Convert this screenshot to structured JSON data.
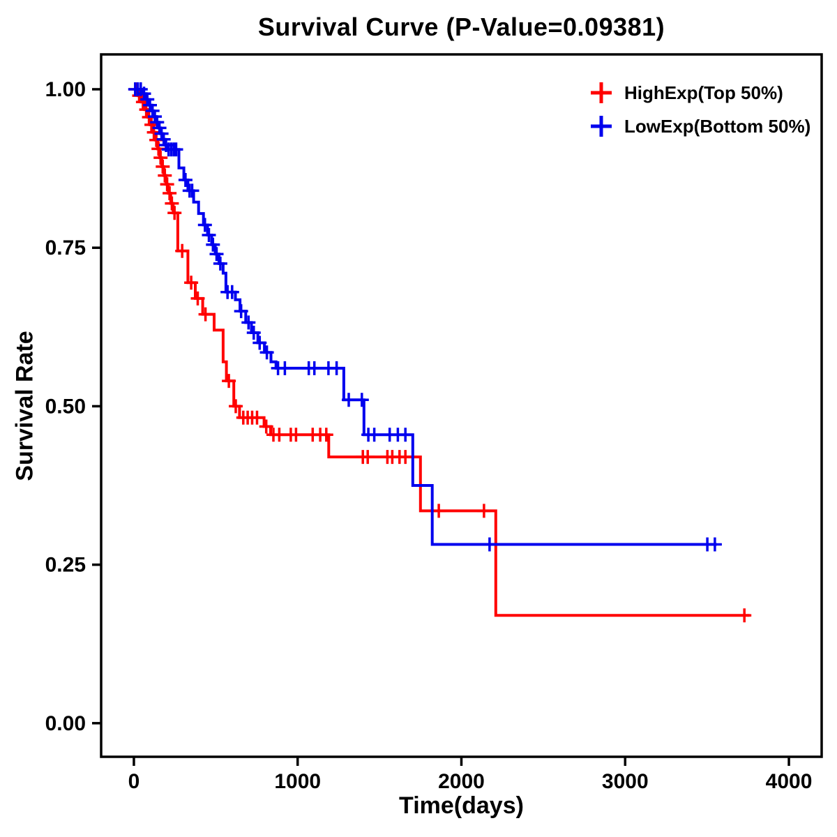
{
  "chart_data": {
    "type": "line",
    "subtype": "kaplan-meier-step-survival",
    "title": "Survival Curve (P-Value=0.09381)",
    "xlabel": "Time(days)",
    "ylabel": "Survival Rate",
    "p_value": "0.09381",
    "xlim": [
      -200,
      4200
    ],
    "ylim": [
      -0.053,
      1.055
    ],
    "x_ticks": [
      0,
      1000,
      2000,
      3000,
      4000
    ],
    "y_ticks": [
      0.0,
      0.25,
      0.5,
      0.75,
      1.0
    ],
    "y_tick_labels": [
      "0.00",
      "0.25",
      "0.50",
      "0.75",
      "1.00"
    ],
    "grid": false,
    "legend_position": "top-right",
    "axis_color": "#000000",
    "series": [
      {
        "name": "HighExp(Top 50%)",
        "color": "#FF0000",
        "end_time": 3760,
        "steps": [
          [
            0,
            1.0
          ],
          [
            25,
            0.99
          ],
          [
            45,
            0.98
          ],
          [
            65,
            0.968
          ],
          [
            85,
            0.956
          ],
          [
            100,
            0.944
          ],
          [
            115,
            0.932
          ],
          [
            130,
            0.92
          ],
          [
            145,
            0.906
          ],
          [
            158,
            0.892
          ],
          [
            170,
            0.878
          ],
          [
            183,
            0.864
          ],
          [
            196,
            0.85
          ],
          [
            210,
            0.836
          ],
          [
            225,
            0.82
          ],
          [
            240,
            0.805
          ],
          [
            268,
            0.745
          ],
          [
            330,
            0.695
          ],
          [
            375,
            0.67
          ],
          [
            420,
            0.645
          ],
          [
            490,
            0.62
          ],
          [
            545,
            0.57
          ],
          [
            565,
            0.54
          ],
          [
            610,
            0.5
          ],
          [
            645,
            0.482
          ],
          [
            795,
            0.468
          ],
          [
            835,
            0.455
          ],
          [
            1190,
            0.42
          ],
          [
            1750,
            0.335
          ],
          [
            2210,
            0.17
          ]
        ],
        "censors": [
          [
            12,
            1.0
          ],
          [
            32,
            0.99
          ],
          [
            55,
            0.98
          ],
          [
            75,
            0.968
          ],
          [
            92,
            0.956
          ],
          [
            107,
            0.944
          ],
          [
            122,
            0.932
          ],
          [
            137,
            0.92
          ],
          [
            150,
            0.906
          ],
          [
            163,
            0.892
          ],
          [
            176,
            0.878
          ],
          [
            189,
            0.864
          ],
          [
            203,
            0.85
          ],
          [
            218,
            0.836
          ],
          [
            232,
            0.82
          ],
          [
            248,
            0.805
          ],
          [
            295,
            0.745
          ],
          [
            350,
            0.695
          ],
          [
            390,
            0.67
          ],
          [
            437,
            0.645
          ],
          [
            580,
            0.54
          ],
          [
            622,
            0.5
          ],
          [
            668,
            0.482
          ],
          [
            695,
            0.482
          ],
          [
            722,
            0.482
          ],
          [
            752,
            0.482
          ],
          [
            808,
            0.468
          ],
          [
            852,
            0.455
          ],
          [
            888,
            0.455
          ],
          [
            958,
            0.455
          ],
          [
            990,
            0.455
          ],
          [
            1092,
            0.455
          ],
          [
            1138,
            0.455
          ],
          [
            1175,
            0.455
          ],
          [
            1398,
            0.42
          ],
          [
            1428,
            0.42
          ],
          [
            1548,
            0.42
          ],
          [
            1578,
            0.42
          ],
          [
            1622,
            0.42
          ],
          [
            1658,
            0.42
          ],
          [
            1862,
            0.335
          ],
          [
            2138,
            0.335
          ],
          [
            3728,
            0.17
          ]
        ]
      },
      {
        "name": "LowExp(Bottom 50%)",
        "color": "#0000EE",
        "end_time": 3560,
        "steps": [
          [
            0,
            1.0
          ],
          [
            55,
            0.993
          ],
          [
            75,
            0.984
          ],
          [
            92,
            0.975
          ],
          [
            108,
            0.966
          ],
          [
            122,
            0.957
          ],
          [
            136,
            0.948
          ],
          [
            150,
            0.939
          ],
          [
            163,
            0.93
          ],
          [
            176,
            0.921
          ],
          [
            190,
            0.912
          ],
          [
            202,
            0.905
          ],
          [
            275,
            0.876
          ],
          [
            305,
            0.857
          ],
          [
            330,
            0.84
          ],
          [
            365,
            0.822
          ],
          [
            395,
            0.804
          ],
          [
            425,
            0.786
          ],
          [
            450,
            0.77
          ],
          [
            475,
            0.755
          ],
          [
            497,
            0.74
          ],
          [
            520,
            0.725
          ],
          [
            545,
            0.71
          ],
          [
            562,
            0.68
          ],
          [
            620,
            0.668
          ],
          [
            648,
            0.65
          ],
          [
            683,
            0.632
          ],
          [
            718,
            0.616
          ],
          [
            757,
            0.6
          ],
          [
            797,
            0.585
          ],
          [
            837,
            0.57
          ],
          [
            868,
            0.56
          ],
          [
            1282,
            0.51
          ],
          [
            1405,
            0.455
          ],
          [
            1703,
            0.375
          ],
          [
            1822,
            0.282
          ]
        ],
        "censors": [
          [
            8,
            1.0
          ],
          [
            24,
            1.0
          ],
          [
            42,
            1.0
          ],
          [
            62,
            0.993
          ],
          [
            82,
            0.984
          ],
          [
            98,
            0.975
          ],
          [
            114,
            0.966
          ],
          [
            128,
            0.957
          ],
          [
            142,
            0.948
          ],
          [
            156,
            0.939
          ],
          [
            169,
            0.93
          ],
          [
            182,
            0.921
          ],
          [
            196,
            0.912
          ],
          [
            212,
            0.905
          ],
          [
            228,
            0.905
          ],
          [
            244,
            0.905
          ],
          [
            258,
            0.905
          ],
          [
            315,
            0.857
          ],
          [
            340,
            0.84
          ],
          [
            356,
            0.84
          ],
          [
            434,
            0.786
          ],
          [
            458,
            0.77
          ],
          [
            483,
            0.755
          ],
          [
            505,
            0.74
          ],
          [
            528,
            0.725
          ],
          [
            572,
            0.68
          ],
          [
            600,
            0.68
          ],
          [
            655,
            0.65
          ],
          [
            700,
            0.632
          ],
          [
            732,
            0.616
          ],
          [
            768,
            0.6
          ],
          [
            812,
            0.585
          ],
          [
            880,
            0.56
          ],
          [
            922,
            0.56
          ],
          [
            1068,
            0.56
          ],
          [
            1102,
            0.56
          ],
          [
            1188,
            0.56
          ],
          [
            1238,
            0.56
          ],
          [
            1312,
            0.51
          ],
          [
            1392,
            0.51
          ],
          [
            1432,
            0.455
          ],
          [
            1468,
            0.455
          ],
          [
            1562,
            0.455
          ],
          [
            1612,
            0.455
          ],
          [
            1658,
            0.455
          ],
          [
            2172,
            0.282
          ],
          [
            3502,
            0.282
          ],
          [
            3548,
            0.282
          ]
        ]
      }
    ]
  }
}
